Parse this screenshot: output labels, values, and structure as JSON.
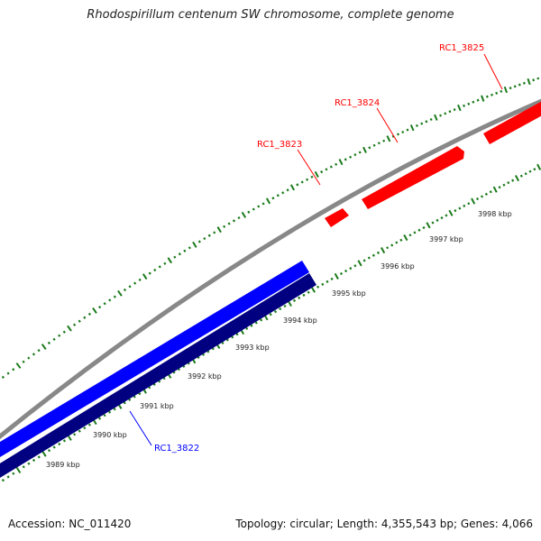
{
  "title": "Rhodospirillum centenum SW chromosome, complete genome",
  "accession": "Accession: NC_011420",
  "summary": "Topology: circular; Length: 4,355,543 bp; Genes: 4,066",
  "colors": {
    "backbone": "#888888",
    "forward_gene": "#ff0000",
    "reverse_gene_light": "#0000ff",
    "reverse_gene_dark": "#000080",
    "ticks": "#1a7a1a",
    "tick_label": "#222222",
    "forward_label": "#ff0000",
    "reverse_label": "#0000ff"
  },
  "kbp_labels": [
    {
      "text": "3989 kbp"
    },
    {
      "text": "3990 kbp"
    },
    {
      "text": "3991 kbp"
    },
    {
      "text": "3992 kbp"
    },
    {
      "text": "3993 kbp"
    },
    {
      "text": "3994 kbp"
    },
    {
      "text": "3995 kbp"
    },
    {
      "text": "3996 kbp"
    },
    {
      "text": "3997 kbp"
    },
    {
      "text": "3998 kbp"
    }
  ],
  "genes": [
    {
      "name": "RC1_3822",
      "strand": "reverse"
    },
    {
      "name": "RC1_3823",
      "strand": "forward"
    },
    {
      "name": "RC1_3824",
      "strand": "forward"
    },
    {
      "name": "RC1_3825",
      "strand": "forward"
    }
  ]
}
